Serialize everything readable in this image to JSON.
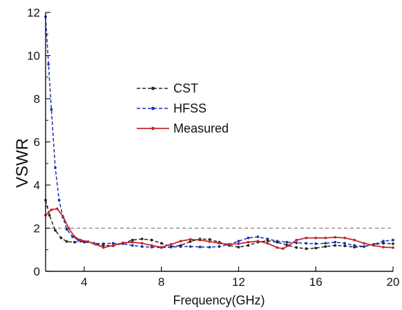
{
  "chart_data": {
    "type": "line",
    "xlabel": "Frequency(GHz)",
    "ylabel": "VSWR",
    "xlim": [
      2,
      20
    ],
    "ylim": [
      0,
      12
    ],
    "x_ticks": [
      4,
      8,
      12,
      16,
      20
    ],
    "y_ticks": [
      0,
      2,
      4,
      6,
      8,
      10,
      12
    ],
    "grid": false,
    "legend_position": "center-left",
    "reference_line": {
      "y": 2,
      "color": "#808080",
      "style": "dashed"
    },
    "series": [
      {
        "name": "CST",
        "color": "#222222",
        "line_style": "dashed",
        "x": [
          2.0,
          2.2,
          2.5,
          2.8,
          3.1,
          3.5,
          4.0,
          4.5,
          5.0,
          5.5,
          6.0,
          6.5,
          7.0,
          7.5,
          8.0,
          8.5,
          9.0,
          9.5,
          10.0,
          10.5,
          11.0,
          11.5,
          12.0,
          12.5,
          13.0,
          13.5,
          14.0,
          14.5,
          15.0,
          15.5,
          16.0,
          16.5,
          17.0,
          17.5,
          18.0,
          18.5,
          19.0,
          19.5,
          20.0
        ],
        "y": [
          3.3,
          2.6,
          1.9,
          1.55,
          1.38,
          1.35,
          1.38,
          1.3,
          1.2,
          1.18,
          1.3,
          1.45,
          1.5,
          1.45,
          1.3,
          1.15,
          1.2,
          1.38,
          1.5,
          1.48,
          1.35,
          1.2,
          1.12,
          1.2,
          1.35,
          1.42,
          1.35,
          1.22,
          1.1,
          1.05,
          1.08,
          1.15,
          1.2,
          1.18,
          1.12,
          1.15,
          1.25,
          1.3,
          1.28
        ]
      },
      {
        "name": "HFSS",
        "color": "#1a2fb0",
        "line_style": "dashed",
        "x": [
          2.0,
          2.15,
          2.3,
          2.5,
          2.7,
          2.9,
          3.1,
          3.4,
          3.7,
          4.0,
          4.5,
          5.0,
          5.5,
          6.0,
          6.5,
          7.0,
          7.5,
          8.0,
          8.5,
          9.0,
          9.5,
          10.0,
          10.5,
          11.0,
          11.5,
          12.0,
          12.5,
          13.0,
          13.5,
          14.0,
          14.5,
          15.0,
          15.5,
          16.0,
          16.5,
          17.0,
          17.5,
          18.0,
          18.5,
          19.0,
          19.5,
          20.0
        ],
        "y": [
          11.8,
          9.6,
          7.5,
          4.8,
          3.3,
          2.5,
          1.95,
          1.6,
          1.45,
          1.35,
          1.3,
          1.28,
          1.3,
          1.28,
          1.2,
          1.15,
          1.12,
          1.1,
          1.12,
          1.15,
          1.15,
          1.13,
          1.12,
          1.15,
          1.25,
          1.4,
          1.55,
          1.6,
          1.5,
          1.4,
          1.35,
          1.32,
          1.3,
          1.28,
          1.3,
          1.35,
          1.3,
          1.2,
          1.15,
          1.25,
          1.4,
          1.45
        ]
      },
      {
        "name": "Measured",
        "color": "#c0282e",
        "line_style": "solid",
        "x": [
          2.0,
          2.3,
          2.6,
          2.9,
          3.2,
          3.5,
          3.8,
          4.2,
          4.6,
          5.0,
          5.5,
          6.0,
          6.5,
          7.0,
          7.5,
          8.0,
          8.5,
          9.0,
          9.5,
          10.0,
          10.5,
          11.0,
          11.5,
          12.0,
          12.5,
          13.0,
          13.5,
          14.0,
          14.3,
          14.6,
          15.0,
          15.5,
          16.0,
          16.5,
          17.0,
          17.5,
          18.0,
          18.5,
          19.0,
          19.5,
          20.0
        ],
        "y": [
          2.6,
          2.85,
          2.9,
          2.55,
          2.0,
          1.6,
          1.45,
          1.38,
          1.25,
          1.1,
          1.2,
          1.32,
          1.35,
          1.3,
          1.2,
          1.12,
          1.25,
          1.4,
          1.48,
          1.45,
          1.38,
          1.3,
          1.25,
          1.28,
          1.35,
          1.4,
          1.3,
          1.1,
          1.05,
          1.2,
          1.45,
          1.55,
          1.55,
          1.55,
          1.58,
          1.55,
          1.45,
          1.3,
          1.2,
          1.12,
          1.1
        ]
      }
    ]
  }
}
